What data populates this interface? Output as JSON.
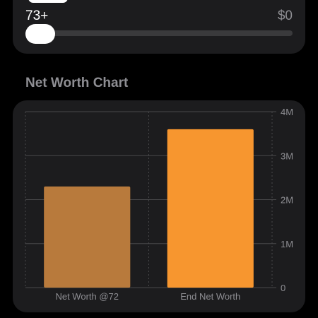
{
  "retirement_slider": {
    "age_label": "73+",
    "amount_label": "$0"
  },
  "section": {
    "title": "Net Worth Chart"
  },
  "colors": {
    "background": "#000000",
    "card": "#1c1c1e",
    "bar_net_worth_72": "#b87a3c",
    "bar_end_net_worth": "#f7962f",
    "axis_text": "#8e8e93"
  },
  "chart_data": {
    "type": "bar",
    "categories": [
      "Net Worth @72",
      "End Net Worth"
    ],
    "values": [
      2300000,
      3600000
    ],
    "bar_colors": [
      "#b87a3c",
      "#f7962f"
    ],
    "ylim": [
      0,
      4000000
    ],
    "y_ticks": [
      0,
      1000000,
      2000000,
      3000000,
      4000000
    ],
    "y_tick_labels": [
      "0",
      "1M",
      "2M",
      "3M",
      "4M"
    ],
    "y_axis_position": "right",
    "grid": true
  }
}
